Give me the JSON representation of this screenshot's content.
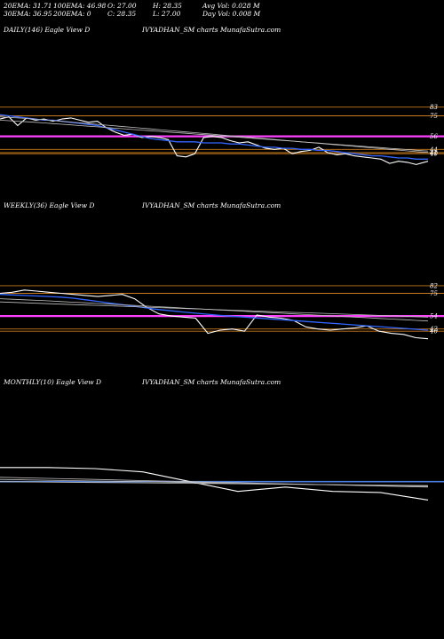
{
  "stats": {
    "ema20": "20EMA: 31.71",
    "ema30": "30EMA: 36.95",
    "ema100": "100EMA: 46.98",
    "ema200": "200EMA: 0",
    "open": "O: 27.00",
    "close": "C: 28.35",
    "high": "H: 28.35",
    "low": "L: 27.00",
    "avg_vol": "Avg Vol: 0.028  M",
    "day_vol": "Day Vol: 0.008  M"
  },
  "panels": [
    {
      "label": "DAILY(146) Eagle   View  D",
      "watermark": "IVYADHAN_SM charts MunafaSutra.com"
    },
    {
      "label": "WEEKLY(36) Eagle   View  D",
      "watermark": "IVYADHAN_SM charts MunafaSutra.com"
    },
    {
      "label": "MONTHLY(10) Eagle   View  D",
      "watermark": "IVYADHAN_SM charts MunafaSutra.com"
    }
  ],
  "colors": {
    "background": "#000000",
    "price": "#ffffff",
    "ema_fast": "#3366ff",
    "ema_slow": "#c0c0c0",
    "level_orange": "#c87a1e",
    "level_magenta": "#ff40ff",
    "level_blue": "#4a7bd8"
  },
  "chart_data": [
    {
      "type": "line",
      "title": "DAILY(146) Eagle   View  D",
      "ylim": [
        18,
        100
      ],
      "price_labels": [
        "83",
        "75",
        "56",
        "44",
        "41",
        "40"
      ],
      "levels": [
        {
          "value": 83,
          "color": "#c87a1e"
        },
        {
          "value": 75,
          "color": "#c87a1e"
        },
        {
          "value": 56,
          "color": "#ff40ff",
          "width": 2.2
        },
        {
          "value": 44,
          "color": "#c87a1e"
        },
        {
          "value": 41,
          "color": "#c87a1e"
        },
        {
          "value": 40,
          "color": "#c87a1e"
        }
      ],
      "x": [
        0,
        3,
        6,
        9,
        12,
        15,
        18,
        21,
        24,
        27,
        30,
        33,
        36,
        39,
        42,
        45,
        48,
        51,
        54,
        57,
        60,
        63,
        66,
        69,
        72,
        75,
        78,
        81,
        84,
        87,
        90,
        93,
        96,
        99,
        102,
        105,
        108,
        111,
        114,
        117,
        120,
        123,
        126,
        129,
        132,
        135,
        138,
        141,
        145
      ],
      "series": [
        {
          "role": "price",
          "values": [
            72,
            74,
            66,
            73,
            71,
            72,
            70,
            72,
            73,
            71,
            69,
            70,
            64,
            60,
            57,
            58,
            55,
            56,
            55,
            53,
            38,
            37,
            40,
            55,
            56,
            55,
            52,
            50,
            51,
            48,
            45,
            44,
            45,
            40,
            42,
            43,
            46,
            41,
            39,
            40,
            38,
            37,
            36,
            35,
            31,
            33,
            32,
            30,
            33
          ]
        },
        {
          "role": "ema_fast",
          "values": [
            76,
            75,
            74,
            73,
            72,
            71,
            71,
            70,
            69,
            68,
            67,
            66,
            64,
            62,
            60,
            58,
            56,
            54,
            53,
            52,
            51,
            51,
            51,
            50,
            50,
            50,
            49,
            49,
            48,
            47,
            46,
            46,
            45,
            45,
            44,
            44,
            43,
            43,
            42,
            41,
            40,
            39,
            38,
            38,
            37,
            36,
            36,
            35,
            35
          ]
        },
        {
          "role": "ema_slow",
          "values": [
            74,
            73.5,
            73,
            72.5,
            72,
            71.3,
            70.6,
            69.9,
            69.2,
            68.5,
            67.8,
            67.1,
            66.4,
            65.7,
            65,
            64.3,
            63.6,
            62.9,
            62.2,
            61.5,
            60.8,
            60.1,
            59.4,
            58.7,
            58,
            57.3,
            56.6,
            55.9,
            55.2,
            54.5,
            53.8,
            53.1,
            52.4,
            51.7,
            51,
            50.3,
            49.6,
            48.9,
            48.2,
            47.5,
            46.8,
            46.1,
            45.4,
            44.7,
            44,
            43.3,
            42.6,
            41.9,
            41.2
          ]
        },
        {
          "role": "ema_slow",
          "values": [
            71,
            70.5,
            70,
            69.5,
            69,
            68.4,
            67.8,
            67.2,
            66.6,
            66,
            65.4,
            64.8,
            64.2,
            63.6,
            63,
            62.4,
            61.8,
            61.2,
            60.6,
            60,
            59.4,
            58.8,
            58.2,
            57.6,
            57,
            56.4,
            55.8,
            55.2,
            54.6,
            54,
            53.4,
            52.8,
            52.2,
            51.6,
            51,
            50.4,
            49.8,
            49.2,
            48.6,
            48,
            47.4,
            46.8,
            46.2,
            45.6,
            45,
            44.4,
            43.8,
            43.2,
            42.5
          ]
        }
      ]
    },
    {
      "type": "line",
      "title": "WEEKLY(36) Eagle   View  D",
      "ylim": [
        18,
        100
      ],
      "price_labels": [
        "82",
        "75",
        "54",
        "42",
        "40"
      ],
      "levels": [
        {
          "value": 82,
          "color": "#c87a1e"
        },
        {
          "value": 75,
          "color": "#c87a1e"
        },
        {
          "value": 54,
          "color": "#ff40ff",
          "width": 2.2
        },
        {
          "value": 42,
          "color": "#c87a1e"
        },
        {
          "value": 40,
          "color": "#c87a1e"
        }
      ],
      "x": [
        0,
        1,
        2,
        3,
        4,
        5,
        6,
        7,
        8,
        9,
        10,
        11,
        12,
        13,
        14,
        15,
        16,
        17,
        18,
        19,
        20,
        21,
        22,
        23,
        24,
        25,
        26,
        27,
        28,
        29,
        30,
        31,
        32,
        33,
        34,
        35
      ],
      "series": [
        {
          "role": "price",
          "values": [
            75,
            76,
            78,
            77,
            76,
            75,
            74,
            73,
            72,
            73,
            74,
            70,
            62,
            56,
            54,
            53,
            52,
            38,
            41,
            42,
            40,
            55,
            53,
            52,
            50,
            44,
            42,
            41,
            42,
            43,
            45,
            40,
            38,
            37,
            34,
            33
          ]
        },
        {
          "role": "ema_fast",
          "values": [
            74,
            73.5,
            73,
            72.5,
            72,
            71.5,
            70.5,
            69,
            67.5,
            66,
            64.5,
            63,
            61.5,
            60,
            58.8,
            57.7,
            56.6,
            55.6,
            54.6,
            53.8,
            53,
            52.2,
            51.4,
            50.6,
            49.8,
            49,
            48.2,
            47.4,
            46.6,
            45.8,
            45,
            44.2,
            43.4,
            42.6,
            41.8,
            41
          ]
        },
        {
          "role": "ema_slow",
          "values": [
            70,
            69.5,
            69,
            68.5,
            68,
            67.4,
            66.8,
            66.2,
            65.6,
            65,
            64.4,
            63.8,
            63.2,
            62.6,
            62,
            61.4,
            60.8,
            60.2,
            59.6,
            59,
            58.4,
            57.8,
            57.2,
            56.6,
            56,
            55.4,
            54.8,
            54.2,
            53.6,
            53,
            52.4,
            51.8,
            51.2,
            50.6,
            50,
            49.4
          ]
        },
        {
          "role": "ema_slow",
          "values": [
            67,
            66.6,
            66.2,
            65.8,
            65.4,
            65,
            64.6,
            64.2,
            63.8,
            63.4,
            63,
            62.6,
            62.2,
            61.8,
            61.4,
            61,
            60.6,
            60.2,
            59.8,
            59.4,
            59,
            58.6,
            58.2,
            57.8,
            57.4,
            57,
            56.6,
            56.2,
            55.8,
            55.4,
            55,
            54.6,
            54.2,
            53.8,
            53.4,
            53
          ]
        }
      ]
    },
    {
      "type": "line",
      "title": "MONTHLY(10) Eagle   View  D",
      "ylim": [
        18,
        100
      ],
      "price_labels": [],
      "levels": [
        {
          "value": 65,
          "color": "#4a7bd8",
          "width": 1.6
        }
      ],
      "x": [
        0,
        1,
        2,
        3,
        4,
        5,
        6,
        7,
        8,
        9
      ],
      "series": [
        {
          "role": "price",
          "values": [
            78,
            78,
            77,
            74,
            65,
            56,
            60,
            56,
            55,
            48
          ]
        },
        {
          "role": "ema_slow",
          "values": [
            69,
            68,
            67,
            66,
            65,
            64,
            63,
            62,
            61,
            60
          ]
        },
        {
          "role": "ema_slow",
          "values": [
            67,
            66.3,
            65.6,
            64.9,
            64.2,
            63.5,
            62.8,
            62.1,
            61.4,
            60.7
          ]
        },
        {
          "role": "ema_slow",
          "values": [
            65,
            64.6,
            64.2,
            63.8,
            63.4,
            63,
            62.6,
            62.2,
            61.8,
            61.4
          ]
        }
      ]
    }
  ]
}
